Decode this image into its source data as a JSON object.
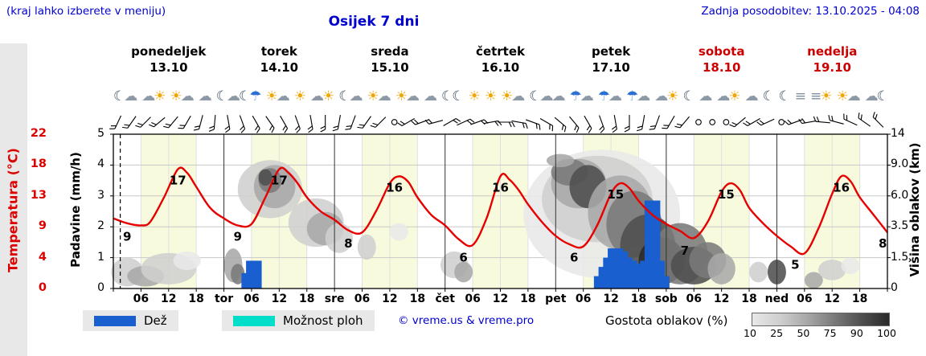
{
  "header": {
    "hint": "(kraj lahko izberete v meniju)",
    "title": "Osijek 7 dni",
    "updated": "Zadnja posodobitev: 13.10.2025 - 04:08"
  },
  "days": [
    {
      "name": "ponedeljek",
      "date": "13.10",
      "color": "#000000",
      "icons": [
        "☾☁",
        "☁☀",
        "☀☁",
        "☁",
        "☾☁"
      ]
    },
    {
      "name": "torek",
      "date": "14.10",
      "color": "#000000",
      "icons": [
        "☾☂",
        "☀☁",
        "☀",
        "☁☀",
        "☾"
      ]
    },
    {
      "name": "sreda",
      "date": "15.10",
      "color": "#000000",
      "icons": [
        "☁",
        "☀☁",
        "☀☁",
        "☁",
        "☾"
      ]
    },
    {
      "name": "četrtek",
      "date": "16.10",
      "color": "#000000",
      "icons": [
        "☾",
        "☀",
        "☀",
        "☀☁",
        "☾☁"
      ]
    },
    {
      "name": "petek",
      "date": "17.10",
      "color": "#000000",
      "icons": [
        "☁",
        "☂☁",
        "☂☁",
        "☂☁",
        "☁☀",
        "☾"
      ]
    },
    {
      "name": "sobota",
      "date": "18.10",
      "color": "#cc0000",
      "icons": [
        "☁",
        "☁☀",
        "☁",
        "☾"
      ]
    },
    {
      "name": "nedelja",
      "date": "19.10",
      "color": "#cc0000",
      "icons": [
        "☾",
        "≡",
        "≡☀",
        "☀☁",
        "☁☾"
      ]
    }
  ],
  "axes": {
    "temperature": {
      "label": "Temperatura (°C)",
      "ticks": [
        "22",
        "18",
        "13",
        "9",
        "4",
        "0"
      ],
      "color": "#dd0000"
    },
    "precipitation": {
      "label": "Padavine (mm/h)",
      "ticks": [
        "5",
        "4",
        "3",
        "2",
        "1",
        "0"
      ]
    },
    "cloud_height": {
      "label": "Višina oblakov (km)",
      "ticks": [
        "14",
        "9.0",
        "6.0",
        "3.5",
        "1.5",
        "0"
      ]
    },
    "x": {
      "time_labels": [
        "06",
        "12",
        "18"
      ],
      "day_abbrevs": [
        "tor",
        "sre",
        "čet",
        "pet",
        "sob",
        "ned"
      ]
    }
  },
  "legend": {
    "rain": "Dež",
    "showers": "Možnost ploh",
    "copyright": "© vreme.us & vreme.pro",
    "density": "Gostota oblakov (%)",
    "density_ticks": [
      "10",
      "25",
      "50",
      "75",
      "90",
      "100"
    ]
  },
  "chart_data": {
    "type": "line",
    "title": "Osijek 7 dni",
    "hours_span": 168,
    "daylight_hours": [
      6,
      18
    ],
    "now_hour": 1.5,
    "temperature": {
      "unit": "°C",
      "axis_range": [
        0,
        22
      ],
      "x": [
        0,
        3,
        6,
        8,
        11,
        14,
        16,
        18,
        21,
        24,
        27,
        30,
        33,
        36,
        38,
        40,
        42,
        45,
        48,
        51,
        54,
        57,
        60,
        62,
        64,
        66,
        69,
        72,
        75,
        78,
        81,
        84,
        86,
        88,
        90,
        93,
        96,
        99,
        102,
        105,
        108,
        110,
        112,
        114,
        117,
        120,
        123,
        126,
        129,
        132,
        134,
        136,
        138,
        141,
        144,
        147,
        150,
        153,
        156,
        158,
        160,
        162,
        165,
        168
      ],
      "y": [
        10,
        9.3,
        9,
        9.5,
        13,
        17,
        16.5,
        14.5,
        11.5,
        10,
        9,
        9.2,
        13,
        17,
        16.5,
        15,
        13,
        11,
        9.8,
        8.3,
        8,
        11,
        15,
        16,
        15.2,
        13,
        10.5,
        9,
        7,
        6.2,
        10,
        16,
        15.5,
        14,
        12,
        9.5,
        7.5,
        6.3,
        6,
        9,
        13.5,
        15,
        14.3,
        12.5,
        10.5,
        9.2,
        8.2,
        7.2,
        9.5,
        13.8,
        15,
        14,
        11.5,
        9.3,
        7.5,
        6,
        5,
        8.5,
        13.5,
        16,
        15.3,
        13,
        10.5,
        8
      ]
    },
    "temp_labels": [
      [
        3,
        9
      ],
      [
        14,
        17
      ],
      [
        27,
        9
      ],
      [
        36,
        17
      ],
      [
        51,
        8
      ],
      [
        61,
        16
      ],
      [
        76,
        6
      ],
      [
        84,
        16
      ],
      [
        100,
        6
      ],
      [
        109,
        15
      ],
      [
        124,
        7
      ],
      [
        133,
        15
      ],
      [
        148,
        5
      ],
      [
        158,
        16
      ],
      [
        167,
        8
      ]
    ],
    "precipitation": {
      "unit": "mm/h",
      "axis_range": [
        0,
        5
      ],
      "bars": [
        [
          29.5,
          0.5
        ],
        [
          30.5,
          0.9
        ],
        [
          106,
          0.4
        ],
        [
          107,
          0.7
        ],
        [
          108,
          1.0
        ],
        [
          109,
          1.3
        ],
        [
          110,
          1.2
        ],
        [
          111,
          1.0
        ],
        [
          112,
          0.9
        ],
        [
          113,
          0.8
        ],
        [
          114,
          0.7
        ],
        [
          115,
          0.7
        ],
        [
          116,
          0.9
        ],
        [
          117,
          2.85
        ],
        [
          118,
          0.9
        ],
        [
          119,
          0.4
        ]
      ]
    },
    "cloud_height_ticks_km": [
      0,
      1.5,
      3.5,
      6,
      9,
      14
    ],
    "clouds": [
      [
        3,
        0.8,
        3.5,
        0.7,
        25
      ],
      [
        7,
        0.6,
        4,
        0.5,
        50
      ],
      [
        12,
        1.0,
        6,
        0.8,
        25
      ],
      [
        16,
        1.4,
        3,
        0.5,
        10
      ],
      [
        26,
        1.2,
        2,
        0.9,
        50
      ],
      [
        27,
        0.7,
        1.5,
        0.5,
        75
      ],
      [
        34,
        7,
        7,
        2.8,
        25
      ],
      [
        35,
        7,
        4.5,
        2,
        50
      ],
      [
        34,
        7.5,
        2.5,
        1.2,
        75
      ],
      [
        33,
        7.8,
        1.5,
        0.8,
        90
      ],
      [
        44,
        4,
        6,
        1.8,
        25
      ],
      [
        46,
        3.5,
        4,
        1.2,
        50
      ],
      [
        49,
        2.8,
        3,
        1,
        25
      ],
      [
        55,
        2.2,
        2,
        0.8,
        25
      ],
      [
        62,
        3.2,
        2,
        0.6,
        10
      ],
      [
        74,
        1.2,
        3,
        0.7,
        25
      ],
      [
        76,
        0.8,
        2,
        0.5,
        50
      ],
      [
        106,
        6,
        17,
        5.5,
        10
      ],
      [
        105,
        6.5,
        12,
        4,
        25
      ],
      [
        101,
        7.5,
        6,
        2.5,
        50
      ],
      [
        99,
        8.5,
        4,
        1.5,
        75
      ],
      [
        103,
        7,
        4,
        2,
        90
      ],
      [
        97,
        9.8,
        3,
        1,
        50
      ],
      [
        110,
        5,
        7,
        3,
        50
      ],
      [
        113,
        4,
        6,
        2.5,
        75
      ],
      [
        116,
        2.5,
        6,
        2,
        90
      ],
      [
        119,
        1.5,
        5,
        1.3,
        100
      ],
      [
        123,
        2,
        6,
        1.8,
        75
      ],
      [
        126,
        1.2,
        5,
        1,
        90
      ],
      [
        129,
        1.5,
        4,
        1,
        75
      ],
      [
        132,
        1,
        3,
        0.8,
        50
      ],
      [
        140,
        0.8,
        2,
        0.5,
        25
      ],
      [
        144,
        0.8,
        2,
        0.6,
        90
      ],
      [
        152,
        0.4,
        2,
        0.4,
        50
      ],
      [
        156,
        0.9,
        3,
        0.5,
        25
      ],
      [
        160,
        1.1,
        2,
        0.4,
        10
      ]
    ],
    "wind": {
      "start_hour": 1,
      "step_hours": 3,
      "dirs": [
        205,
        215,
        225,
        230,
        220,
        210,
        195,
        185,
        170,
        160,
        150,
        145,
        150,
        160,
        170,
        180,
        190,
        200,
        215,
        225,
        "c",
        240,
        250,
        255,
        60,
        65,
        70,
        80,
        90,
        100,
        110,
        120,
        130,
        140,
        150,
        160,
        170,
        180,
        190,
        200,
        210,
        220,
        "c",
        "c",
        "c",
        230,
        240,
        245,
        "c",
        250,
        260,
        275,
        285,
        295,
        305,
        315
      ]
    },
    "colors": {
      "temp": "#e60000",
      "rain": "#1a5fd0",
      "showers": "#00ddc8",
      "daylight": "#f8fadd",
      "density_scale": {
        "10": "#e8e8e8",
        "25": "#cfcfcf",
        "50": "#a8a8a8",
        "75": "#7a7a7a",
        "90": "#4f4f4f",
        "100": "#2a2a2a"
      }
    }
  }
}
